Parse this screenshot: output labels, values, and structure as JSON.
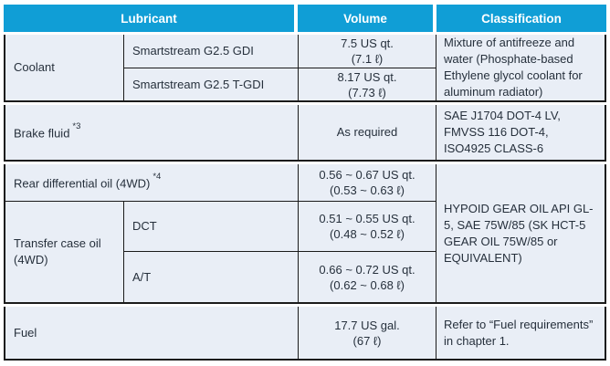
{
  "colors": {
    "header_bg": "#109ed6",
    "row_bg": "#e9eef6",
    "border": "#1b1b1b",
    "text": "#26303c"
  },
  "header": {
    "lubricant": "Lubricant",
    "volume": "Volume",
    "classification": "Classification"
  },
  "rows": {
    "coolant": {
      "label": "Coolant",
      "variants": [
        {
          "name": "Smartstream G2.5 GDI",
          "volume_line1": "7.5 US qt.",
          "volume_line2": "(7.1 ℓ)"
        },
        {
          "name": "Smartstream G2.5 T-GDI",
          "volume_line1": "8.17 US qt.",
          "volume_line2": "(7.73 ℓ)"
        }
      ],
      "classification": "Mixture of antifreeze and water (Phosphate-based Ethylene glycol coolant for aluminum radiator)"
    },
    "brake_fluid": {
      "label": "Brake fluid",
      "label_note": "*3",
      "volume": "As required",
      "classification": "SAE J1704 DOT-4 LV, FMVSS 116 DOT-4, ISO4925 CLASS-6"
    },
    "rear_differential": {
      "label": "Rear differential oil (4WD)",
      "label_note": "*4",
      "volume_line1": "0.56 ~ 0.67 US qt.",
      "volume_line2": "(0.53 ~ 0.63 ℓ)"
    },
    "transfer_case": {
      "label": "Transfer case oil (4WD)",
      "variants": [
        {
          "name": "DCT",
          "volume_line1": "0.51 ~ 0.55 US qt.",
          "volume_line2": "(0.48 ~ 0.52 ℓ)"
        },
        {
          "name": "A/T",
          "volume_line1": "0.66 ~ 0.72 US qt.",
          "volume_line2": "(0.62 ~ 0.68 ℓ)"
        }
      ]
    },
    "gear_oil_classification": "HYPOID GEAR OIL API GL-5, SAE 75W/85 (SK HCT-5 GEAR OIL 75W/85 or EQUIVALENT)",
    "fuel": {
      "label": "Fuel",
      "volume_line1": "17.7 US gal.",
      "volume_line2": "(67 ℓ)",
      "classification": "Refer to “Fuel requirements” in chapter 1."
    }
  }
}
